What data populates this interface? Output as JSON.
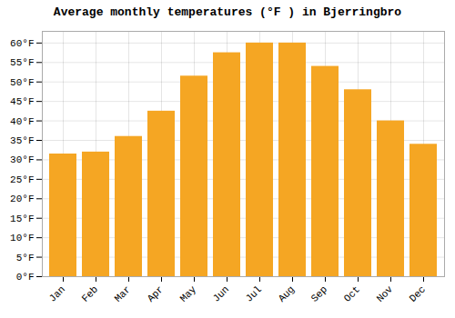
{
  "chart_data": {
    "type": "bar",
    "title": "Average monthly temperatures (°F ) in Bjerringbro",
    "categories": [
      "Jan",
      "Feb",
      "Mar",
      "Apr",
      "May",
      "Jun",
      "Jul",
      "Aug",
      "Sep",
      "Oct",
      "Nov",
      "Dec"
    ],
    "values": [
      31.5,
      32.0,
      36.0,
      42.5,
      51.5,
      57.5,
      60.0,
      60.0,
      54.0,
      48.0,
      40.0,
      34.0
    ],
    "color": "#F5A623",
    "ylim": [
      0,
      63
    ],
    "yticks": [
      {
        "value": 0,
        "label": "0°F"
      },
      {
        "value": 5,
        "label": "5°F"
      },
      {
        "value": 10,
        "label": "10°F"
      },
      {
        "value": 15,
        "label": "15°F"
      },
      {
        "value": 20,
        "label": "20°F"
      },
      {
        "value": 25,
        "label": "25°F"
      },
      {
        "value": 30,
        "label": "30°F"
      },
      {
        "value": 35,
        "label": "35°F"
      },
      {
        "value": 40,
        "label": "40°F"
      },
      {
        "value": 45,
        "label": "45°F"
      },
      {
        "value": 50,
        "label": "50°F"
      },
      {
        "value": 55,
        "label": "55°F"
      },
      {
        "value": 60,
        "label": "60°F"
      }
    ],
    "grid": true
  }
}
